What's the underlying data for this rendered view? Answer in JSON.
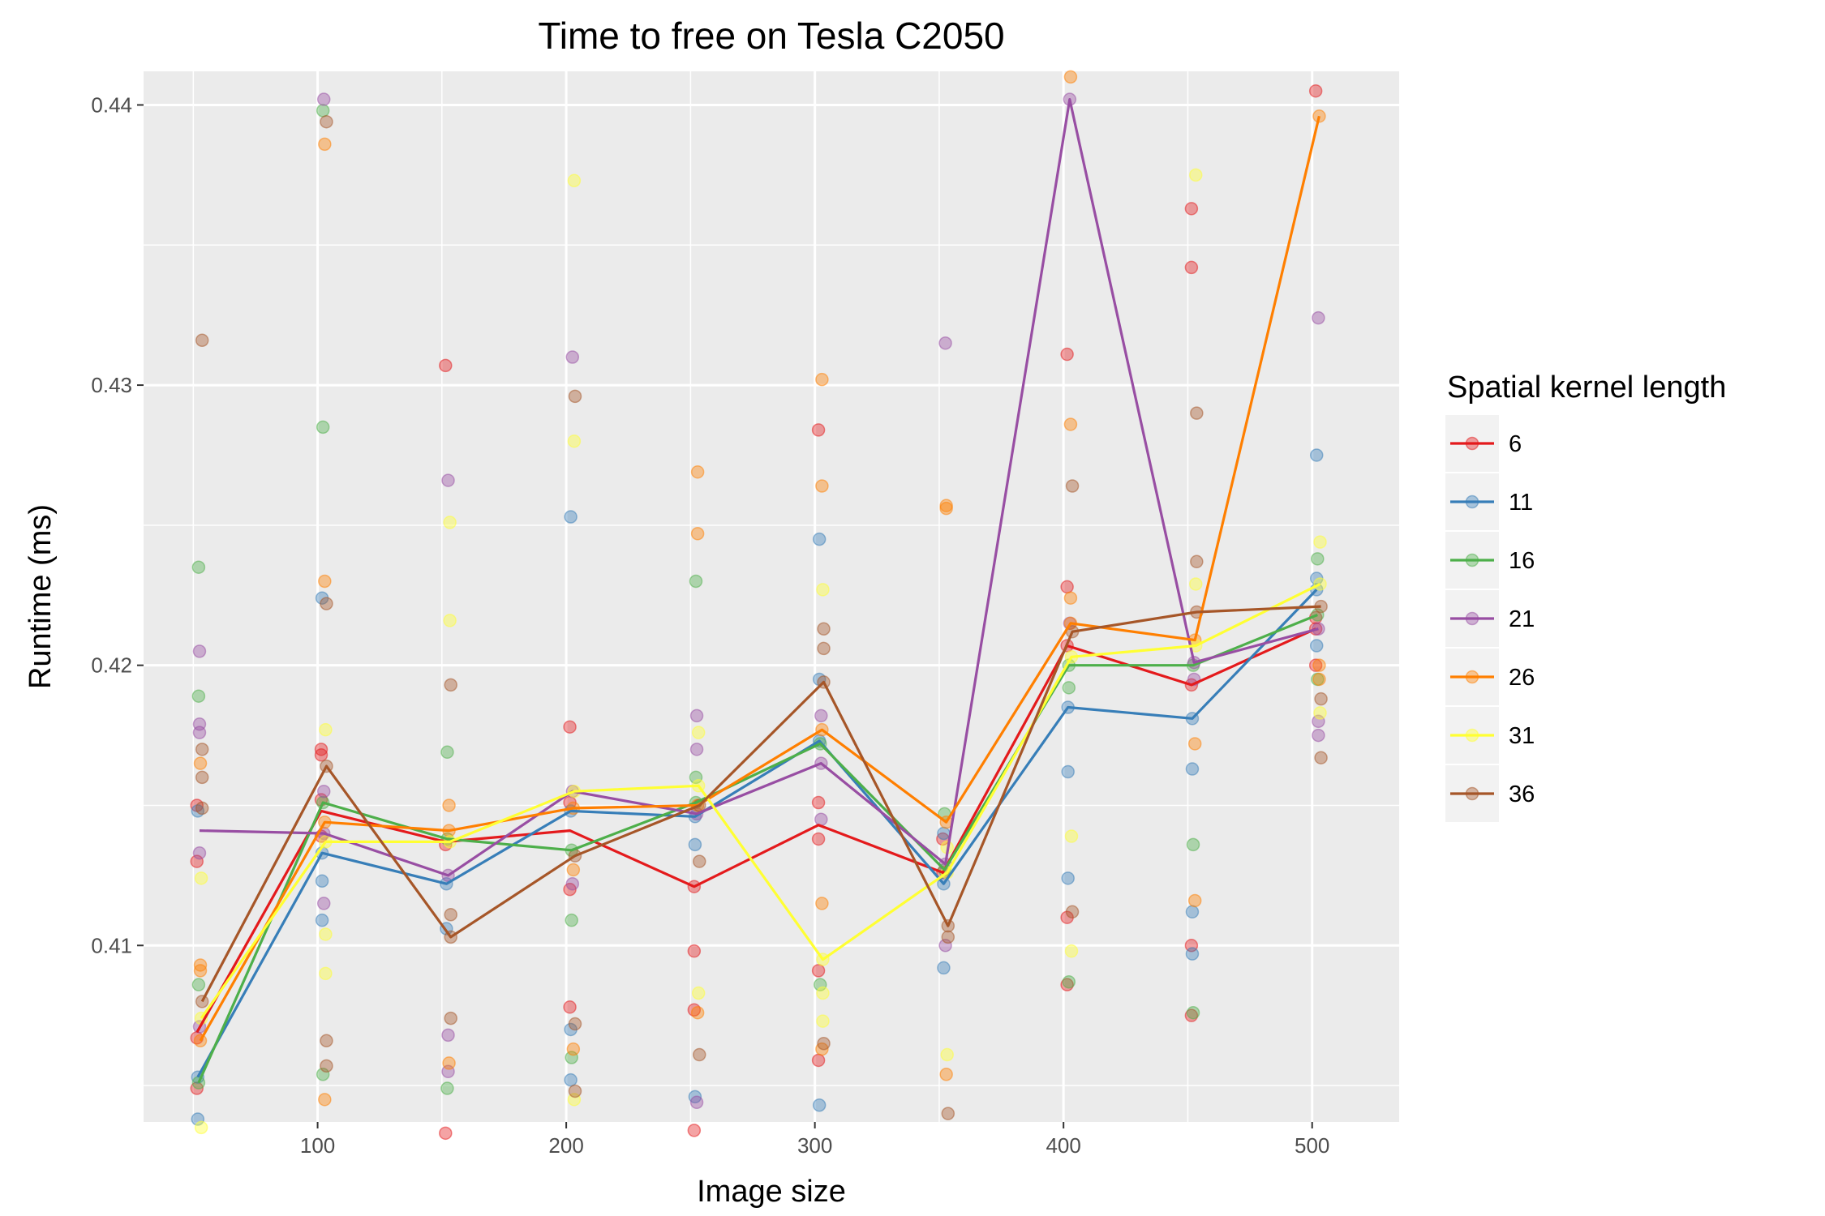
{
  "chart_data": {
    "type": "line",
    "title": "Time to free on Tesla C2050",
    "xlabel": "Image size",
    "ylabel": "Runtime (ms)",
    "xlim": [
      30,
      535
    ],
    "ylim": [
      0.4037,
      0.4412
    ],
    "x_ticks": [
      100,
      200,
      300,
      400,
      500
    ],
    "x_tick_labels": [
      "100",
      "200",
      "300",
      "400",
      "500"
    ],
    "y_ticks": [
      0.41,
      0.42,
      0.43,
      0.44
    ],
    "y_tick_labels": [
      "0.41",
      "0.42",
      "0.43",
      "0.44"
    ],
    "x": [
      50,
      100,
      150,
      200,
      250,
      300,
      350,
      400,
      450,
      500
    ],
    "grid": true,
    "legend": {
      "title": "Spatial kernel length",
      "position": "right"
    },
    "series": [
      {
        "name": "6",
        "color": "#E41A1C",
        "values": [
          0.4069,
          0.4148,
          0.4137,
          0.4141,
          0.4121,
          0.4143,
          0.4126,
          0.4207,
          0.4193,
          0.4213
        ],
        "points": [
          [
            50,
            0.413
          ],
          [
            50,
            0.415
          ],
          [
            50,
            0.4067
          ],
          [
            50,
            0.4049
          ],
          [
            100,
            0.417
          ],
          [
            100,
            0.4152
          ],
          [
            100,
            0.4168
          ],
          [
            100,
            0.4139
          ],
          [
            150,
            0.4307
          ],
          [
            150,
            0.4136
          ],
          [
            150,
            0.4033
          ],
          [
            200,
            0.4178
          ],
          [
            200,
            0.412
          ],
          [
            200,
            0.4078
          ],
          [
            200,
            0.4151
          ],
          [
            250,
            0.4098
          ],
          [
            250,
            0.4121
          ],
          [
            250,
            0.4077
          ],
          [
            250,
            0.4034
          ],
          [
            300,
            0.4284
          ],
          [
            300,
            0.4138
          ],
          [
            300,
            0.4091
          ],
          [
            300,
            0.4059
          ],
          [
            300,
            0.4151
          ],
          [
            350,
            0.4126
          ],
          [
            350,
            0.4138
          ],
          [
            400,
            0.4311
          ],
          [
            400,
            0.4228
          ],
          [
            400,
            0.4207
          ],
          [
            400,
            0.4086
          ],
          [
            400,
            0.411
          ],
          [
            450,
            0.4363
          ],
          [
            450,
            0.4342
          ],
          [
            450,
            0.4193
          ],
          [
            450,
            0.41
          ],
          [
            450,
            0.4075
          ],
          [
            500,
            0.4405
          ],
          [
            500,
            0.4217
          ],
          [
            500,
            0.4213
          ],
          [
            500,
            0.42
          ]
        ]
      },
      {
        "name": "11",
        "color": "#377EB8",
        "values": [
          0.4053,
          0.4133,
          0.4122,
          0.4148,
          0.4146,
          0.4173,
          0.4122,
          0.4185,
          0.4181,
          0.4227
        ],
        "points": [
          [
            50,
            0.4053
          ],
          [
            50,
            0.4038
          ],
          [
            50,
            0.4148
          ],
          [
            100,
            0.4224
          ],
          [
            100,
            0.4133
          ],
          [
            100,
            0.4109
          ],
          [
            100,
            0.4123
          ],
          [
            150,
            0.4122
          ],
          [
            150,
            0.4106
          ],
          [
            200,
            0.4253
          ],
          [
            200,
            0.4148
          ],
          [
            200,
            0.4052
          ],
          [
            200,
            0.407
          ],
          [
            250,
            0.4146
          ],
          [
            250,
            0.4136
          ],
          [
            250,
            0.4046
          ],
          [
            300,
            0.4245
          ],
          [
            300,
            0.4173
          ],
          [
            300,
            0.4195
          ],
          [
            300,
            0.4043
          ],
          [
            350,
            0.4122
          ],
          [
            350,
            0.4092
          ],
          [
            350,
            0.414
          ],
          [
            400,
            0.4185
          ],
          [
            400,
            0.4162
          ],
          [
            400,
            0.4124
          ],
          [
            450,
            0.4181
          ],
          [
            450,
            0.4163
          ],
          [
            450,
            0.4112
          ],
          [
            450,
            0.4097
          ],
          [
            500,
            0.4275
          ],
          [
            500,
            0.4227
          ],
          [
            500,
            0.4231
          ],
          [
            500,
            0.4207
          ]
        ]
      },
      {
        "name": "16",
        "color": "#4DAF4A",
        "values": [
          0.4051,
          0.4151,
          0.4138,
          0.4134,
          0.4151,
          0.4172,
          0.4127,
          0.42,
          0.42,
          0.4218
        ],
        "points": [
          [
            50,
            0.4235
          ],
          [
            50,
            0.4189
          ],
          [
            50,
            0.4051
          ],
          [
            50,
            0.4086
          ],
          [
            100,
            0.4285
          ],
          [
            100,
            0.4151
          ],
          [
            100,
            0.4054
          ],
          [
            100,
            0.4398
          ],
          [
            150,
            0.4169
          ],
          [
            150,
            0.4138
          ],
          [
            150,
            0.4049
          ],
          [
            200,
            0.4134
          ],
          [
            200,
            0.4109
          ],
          [
            200,
            0.406
          ],
          [
            250,
            0.423
          ],
          [
            250,
            0.4151
          ],
          [
            250,
            0.416
          ],
          [
            300,
            0.4172
          ],
          [
            300,
            0.4086
          ],
          [
            350,
            0.4127
          ],
          [
            350,
            0.4147
          ],
          [
            400,
            0.42
          ],
          [
            400,
            0.4192
          ],
          [
            400,
            0.4087
          ],
          [
            450,
            0.42
          ],
          [
            450,
            0.4136
          ],
          [
            450,
            0.4076
          ],
          [
            500,
            0.4218
          ],
          [
            500,
            0.4238
          ],
          [
            500,
            0.4195
          ]
        ]
      },
      {
        "name": "21",
        "color": "#984EA3",
        "values": [
          0.4141,
          0.414,
          0.4125,
          0.4155,
          0.4147,
          0.4165,
          0.4129,
          0.4402,
          0.4201,
          0.4213
        ],
        "points": [
          [
            50,
            0.4205
          ],
          [
            50,
            0.4179
          ],
          [
            50,
            0.4176
          ],
          [
            50,
            0.4133
          ],
          [
            50,
            0.4071
          ],
          [
            100,
            0.4402
          ],
          [
            100,
            0.414
          ],
          [
            100,
            0.4155
          ],
          [
            100,
            0.4115
          ],
          [
            150,
            0.4266
          ],
          [
            150,
            0.4125
          ],
          [
            150,
            0.4068
          ],
          [
            150,
            0.4055
          ],
          [
            200,
            0.431
          ],
          [
            200,
            0.4155
          ],
          [
            200,
            0.4122
          ],
          [
            250,
            0.4182
          ],
          [
            250,
            0.4147
          ],
          [
            250,
            0.417
          ],
          [
            250,
            0.4044
          ],
          [
            300,
            0.4165
          ],
          [
            300,
            0.4145
          ],
          [
            300,
            0.4182
          ],
          [
            350,
            0.4315
          ],
          [
            350,
            0.4129
          ],
          [
            350,
            0.41
          ],
          [
            400,
            0.4402
          ],
          [
            400,
            0.4215
          ],
          [
            450,
            0.4201
          ],
          [
            450,
            0.4195
          ],
          [
            500,
            0.4324
          ],
          [
            500,
            0.4213
          ],
          [
            500,
            0.4175
          ],
          [
            500,
            0.418
          ]
        ]
      },
      {
        "name": "26",
        "color": "#FF7F00",
        "values": [
          0.4066,
          0.4144,
          0.4141,
          0.4149,
          0.415,
          0.4177,
          0.4144,
          0.4215,
          0.4209,
          0.4396
        ],
        "points": [
          [
            50,
            0.4093
          ],
          [
            50,
            0.4066
          ],
          [
            50,
            0.4165
          ],
          [
            50,
            0.4091
          ],
          [
            100,
            0.4386
          ],
          [
            100,
            0.423
          ],
          [
            100,
            0.4144
          ],
          [
            100,
            0.4045
          ],
          [
            150,
            0.4141
          ],
          [
            150,
            0.4058
          ],
          [
            150,
            0.415
          ],
          [
            200,
            0.4149
          ],
          [
            200,
            0.4127
          ],
          [
            200,
            0.4063
          ],
          [
            250,
            0.4269
          ],
          [
            250,
            0.4247
          ],
          [
            250,
            0.415
          ],
          [
            250,
            0.4076
          ],
          [
            300,
            0.4302
          ],
          [
            300,
            0.4264
          ],
          [
            300,
            0.4177
          ],
          [
            300,
            0.4115
          ],
          [
            300,
            0.4063
          ],
          [
            350,
            0.4257
          ],
          [
            350,
            0.4256
          ],
          [
            350,
            0.4144
          ],
          [
            350,
            0.4054
          ],
          [
            400,
            0.441
          ],
          [
            400,
            0.4286
          ],
          [
            400,
            0.4215
          ],
          [
            400,
            0.4224
          ],
          [
            450,
            0.4209
          ],
          [
            450,
            0.4172
          ],
          [
            450,
            0.4116
          ],
          [
            500,
            0.4396
          ],
          [
            500,
            0.42
          ],
          [
            500,
            0.4195
          ]
        ]
      },
      {
        "name": "31",
        "color": "#FFFF33",
        "values": [
          0.4074,
          0.4137,
          0.4137,
          0.4155,
          0.4157,
          0.4095,
          0.4126,
          0.4203,
          0.4207,
          0.4229
        ],
        "points": [
          [
            50,
            0.4124
          ],
          [
            50,
            0.4074
          ],
          [
            50,
            0.4035
          ],
          [
            100,
            0.4177
          ],
          [
            100,
            0.4137
          ],
          [
            100,
            0.4104
          ],
          [
            100,
            0.409
          ],
          [
            150,
            0.4251
          ],
          [
            150,
            0.4216
          ],
          [
            150,
            0.4137
          ],
          [
            200,
            0.4373
          ],
          [
            200,
            0.428
          ],
          [
            200,
            0.4155
          ],
          [
            200,
            0.4045
          ],
          [
            250,
            0.4157
          ],
          [
            250,
            0.4176
          ],
          [
            250,
            0.4083
          ],
          [
            300,
            0.4227
          ],
          [
            300,
            0.4095
          ],
          [
            300,
            0.4083
          ],
          [
            300,
            0.4073
          ],
          [
            350,
            0.4126
          ],
          [
            350,
            0.4061
          ],
          [
            350,
            0.4135
          ],
          [
            400,
            0.4203
          ],
          [
            400,
            0.4139
          ],
          [
            400,
            0.4098
          ],
          [
            450,
            0.4375
          ],
          [
            450,
            0.4207
          ],
          [
            450,
            0.4229
          ],
          [
            500,
            0.4244
          ],
          [
            500,
            0.4229
          ],
          [
            500,
            0.4183
          ]
        ]
      },
      {
        "name": "36",
        "color": "#A65628",
        "values": [
          0.408,
          0.4164,
          0.4103,
          0.4132,
          0.415,
          0.4194,
          0.4107,
          0.4212,
          0.4219,
          0.4221
        ],
        "points": [
          [
            50,
            0.4316
          ],
          [
            50,
            0.417
          ],
          [
            50,
            0.416
          ],
          [
            50,
            0.4149
          ],
          [
            50,
            0.408
          ],
          [
            100,
            0.4394
          ],
          [
            100,
            0.4222
          ],
          [
            100,
            0.4164
          ],
          [
            100,
            0.4066
          ],
          [
            100,
            0.4057
          ],
          [
            150,
            0.4193
          ],
          [
            150,
            0.4103
          ],
          [
            150,
            0.4074
          ],
          [
            150,
            0.4111
          ],
          [
            200,
            0.4296
          ],
          [
            200,
            0.4132
          ],
          [
            200,
            0.4072
          ],
          [
            200,
            0.4048
          ],
          [
            250,
            0.415
          ],
          [
            250,
            0.413
          ],
          [
            250,
            0.4061
          ],
          [
            300,
            0.4213
          ],
          [
            300,
            0.4194
          ],
          [
            300,
            0.4206
          ],
          [
            300,
            0.4065
          ],
          [
            350,
            0.4107
          ],
          [
            350,
            0.404
          ],
          [
            350,
            0.4103
          ],
          [
            400,
            0.4264
          ],
          [
            400,
            0.4212
          ],
          [
            400,
            0.4112
          ],
          [
            450,
            0.429
          ],
          [
            450,
            0.4219
          ],
          [
            450,
            0.4237
          ],
          [
            500,
            0.4221
          ],
          [
            500,
            0.4167
          ],
          [
            500,
            0.4188
          ]
        ]
      }
    ]
  }
}
